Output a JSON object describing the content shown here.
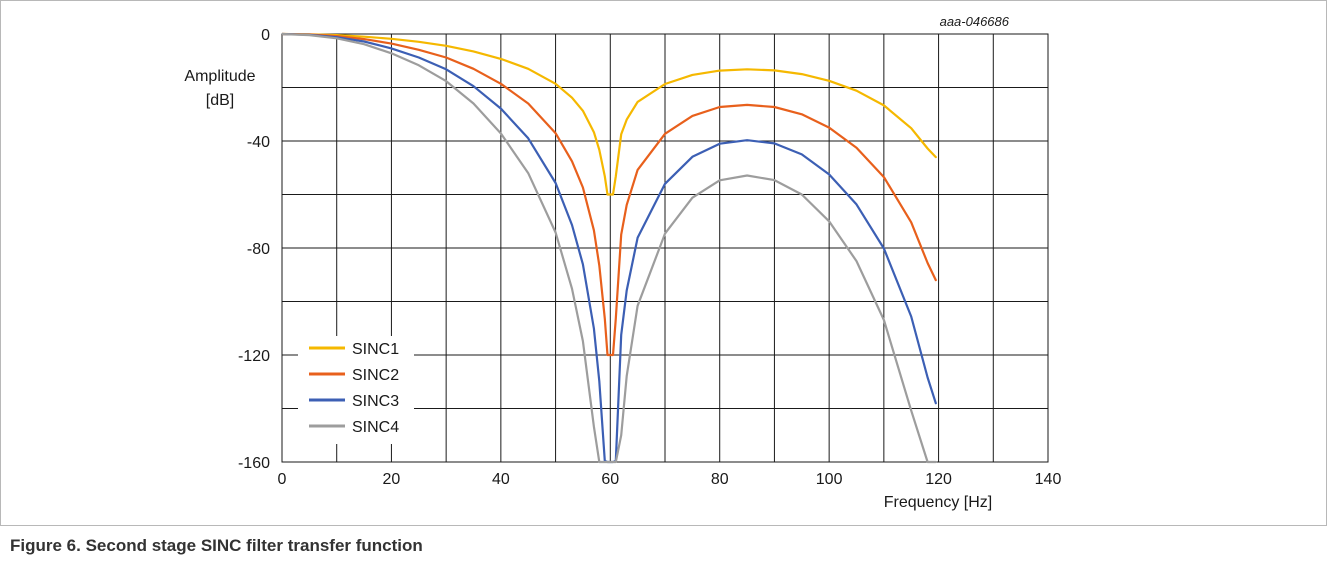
{
  "figure": {
    "id_label": "aaa-046686",
    "caption": "Figure 6.  Second stage SINC filter transfer function"
  },
  "chart_data": {
    "type": "line",
    "xlabel": "Frequency [Hz]",
    "ylabel": [
      "Amplitude",
      "[dB]"
    ],
    "xlim": [
      0,
      140
    ],
    "ylim": [
      -160,
      0
    ],
    "xticks": [
      0,
      20,
      40,
      60,
      80,
      100,
      120,
      140
    ],
    "yticks": [
      0,
      -40,
      -80,
      -120,
      -160
    ],
    "grid": true,
    "legend_position": "bottom-left",
    "series": [
      {
        "name": "SINC1",
        "color": "#f5b800",
        "x": [
          0,
          5,
          10,
          15,
          20,
          25,
          30,
          35,
          40,
          45,
          50,
          53,
          55,
          57,
          58,
          59,
          59.5,
          60,
          60.5,
          61,
          62,
          63,
          65,
          70,
          75,
          80,
          85,
          90,
          95,
          100,
          105,
          110,
          115,
          118,
          119.5
        ],
        "y": [
          0,
          -0.1,
          -0.4,
          -1.0,
          -1.8,
          -2.9,
          -4.4,
          -6.5,
          -9.3,
          -13.0,
          -18.6,
          -23.8,
          -28.7,
          -36.7,
          -43.3,
          -53.2,
          -60,
          -60,
          -60,
          -53.2,
          -37.5,
          -32.0,
          -25.4,
          -18.7,
          -15.3,
          -13.7,
          -13.2,
          -13.6,
          -15.0,
          -17.5,
          -21.2,
          -26.7,
          -35.2,
          -42.8,
          -46.0
        ]
      },
      {
        "name": "SINC2",
        "color": "#e8601c",
        "x": [
          0,
          5,
          10,
          15,
          20,
          25,
          30,
          35,
          40,
          45,
          50,
          53,
          55,
          57,
          58,
          59,
          59.5,
          60,
          60.5,
          61,
          62,
          63,
          65,
          70,
          75,
          80,
          85,
          90,
          95,
          100,
          105,
          110,
          115,
          118,
          119.5
        ],
        "y": [
          0,
          -0.2,
          -0.8,
          -1.9,
          -3.6,
          -5.9,
          -8.8,
          -13.0,
          -18.6,
          -26.0,
          -37.1,
          -47.6,
          -57.4,
          -73.4,
          -86.5,
          -106.4,
          -120,
          -120,
          -120,
          -106.4,
          -75.0,
          -63.9,
          -50.8,
          -37.3,
          -30.6,
          -27.3,
          -26.5,
          -27.3,
          -30.0,
          -35.0,
          -42.5,
          -53.5,
          -70.4,
          -85.6,
          -92.0
        ]
      },
      {
        "name": "SINC3",
        "color": "#3c5fb4",
        "x": [
          0,
          5,
          10,
          15,
          20,
          25,
          30,
          35,
          40,
          45,
          50,
          53,
          55,
          57,
          58,
          59,
          59.5,
          60,
          60.5,
          61,
          62,
          63,
          65,
          70,
          75,
          80,
          85,
          90,
          95,
          100,
          105,
          110,
          115,
          118,
          119.5
        ],
        "y": [
          0,
          -0.3,
          -1.2,
          -2.8,
          -5.4,
          -8.8,
          -13.2,
          -19.5,
          -27.9,
          -39.0,
          -55.7,
          -71.4,
          -86.1,
          -110.1,
          -129.8,
          -159.6,
          -160,
          -160,
          -160,
          -159.6,
          -112.5,
          -95.9,
          -76.2,
          -56.0,
          -45.9,
          -41.0,
          -39.7,
          -40.9,
          -45.0,
          -52.5,
          -63.7,
          -80.2,
          -105.6,
          -128.4,
          -138.0
        ]
      },
      {
        "name": "SINC4",
        "color": "#9d9d9d",
        "x": [
          0,
          5,
          10,
          15,
          20,
          25,
          30,
          35,
          40,
          45,
          50,
          53,
          55,
          57,
          58,
          59,
          59.5,
          60,
          60.5,
          61,
          62,
          63,
          65,
          70,
          75,
          80,
          85,
          90,
          95,
          100,
          105,
          110,
          115,
          118,
          119.5
        ],
        "y": [
          0,
          -0.4,
          -1.6,
          -3.8,
          -7.2,
          -11.7,
          -17.6,
          -26.0,
          -37.2,
          -52.0,
          -74.2,
          -95.2,
          -114.8,
          -146.8,
          -160,
          -160,
          -160,
          -160,
          -160,
          -160,
          -150.0,
          -127.9,
          -101.6,
          -74.6,
          -61.2,
          -54.7,
          -52.9,
          -54.6,
          -60.0,
          -70.0,
          -84.9,
          -106.9,
          -140.8,
          -160,
          -160
        ]
      }
    ]
  }
}
